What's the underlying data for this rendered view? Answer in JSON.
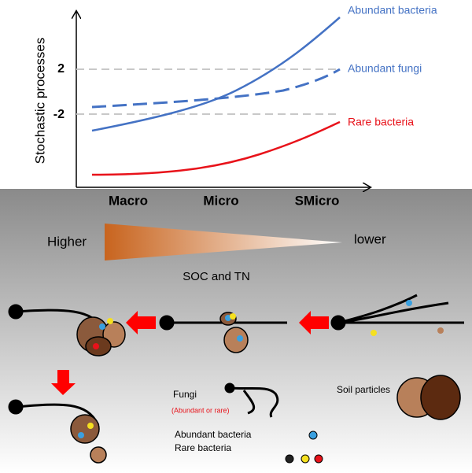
{
  "chart": {
    "y_label": "Stochastic processes",
    "y_ticks": [
      "2",
      "-2"
    ],
    "series_labels": [
      "Abundant bacteria",
      "Abundant fungi",
      "Rare bacteria"
    ],
    "x_labels": [
      "Macro",
      "Micro",
      "SMicro"
    ]
  },
  "gradient": {
    "left": "Higher",
    "right": "lower",
    "caption": "SOC and TN"
  },
  "legend": {
    "fungi": "Fungi",
    "fungi_note": "(Abundant or rare)",
    "soil": "Soil particles",
    "abundant": "Abundant bacteria",
    "rare": "Rare bacteria"
  }
}
